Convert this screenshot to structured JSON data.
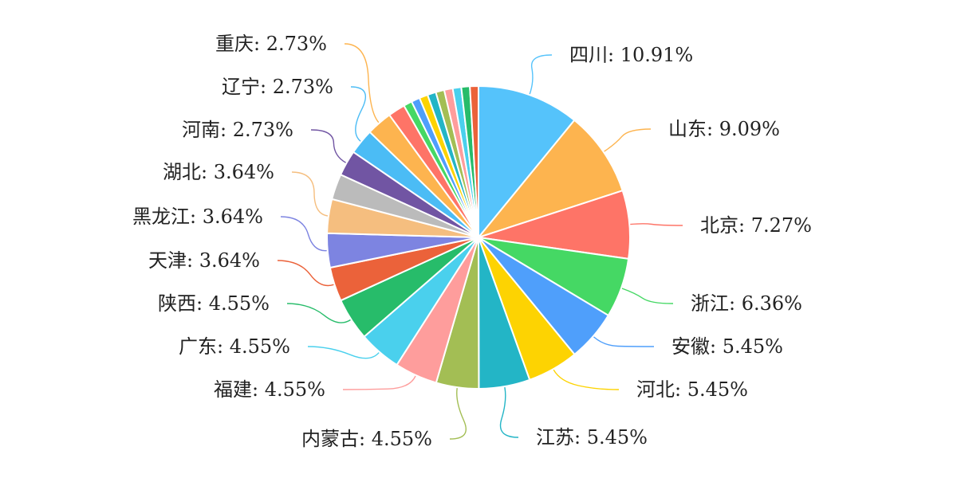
{
  "chart_data": {
    "type": "pie",
    "slices": [
      {
        "name": "四川",
        "value": 10.91,
        "label": "四川: 10.91%",
        "color": "#55c3fb"
      },
      {
        "name": "山东",
        "value": 9.09,
        "label": "山东: 9.09%",
        "color": "#fdb44f"
      },
      {
        "name": "北京",
        "value": 7.27,
        "label": "北京: 7.27%",
        "color": "#fe7467"
      },
      {
        "name": "浙江",
        "value": 6.36,
        "label": "浙江: 6.36%",
        "color": "#45d864"
      },
      {
        "name": "安徽",
        "value": 5.45,
        "label": "安徽: 5.45%",
        "color": "#4f9ffb"
      },
      {
        "name": "河北",
        "value": 5.45,
        "label": "河北: 5.45%",
        "color": "#fdd302"
      },
      {
        "name": "江苏",
        "value": 5.45,
        "label": "江苏: 5.45%",
        "color": "#23b5c6"
      },
      {
        "name": "内蒙古",
        "value": 4.55,
        "label": "内蒙古: 4.55%",
        "color": "#a3be54"
      },
      {
        "name": "福建",
        "value": 4.55,
        "label": "福建: 4.55%",
        "color": "#fe9d9c"
      },
      {
        "name": "广东",
        "value": 4.55,
        "label": "广东: 4.55%",
        "color": "#4ad0ed"
      },
      {
        "name": "陕西",
        "value": 4.55,
        "label": "陕西: 4.55%",
        "color": "#27bc6a"
      },
      {
        "name": "天津",
        "value": 3.64,
        "label": "天津: 3.64%",
        "color": "#eb623a"
      },
      {
        "name": "黑龙江",
        "value": 3.64,
        "label": "黑龙江: 3.64%",
        "color": "#7d84e1"
      },
      {
        "name": "湖北",
        "value": 3.64,
        "label": "湖北: 3.64%",
        "color": "#f5be7f"
      },
      {
        "name": "",
        "value": 2.73,
        "label": "",
        "color": "#bbbbbb"
      },
      {
        "name": "河南",
        "value": 2.73,
        "label": "河南: 2.73%",
        "color": "#7155a3"
      },
      {
        "name": "辽宁",
        "value": 2.73,
        "label": "辽宁: 2.73%",
        "color": "#4bbcf5"
      },
      {
        "name": "重庆",
        "value": 2.73,
        "label": "重庆: 2.73%",
        "color": "#fdb44f"
      },
      {
        "name": "",
        "value": 1.82,
        "label": "",
        "color": "#fe7467"
      },
      {
        "name": "",
        "value": 0.91,
        "label": "",
        "color": "#45d864"
      },
      {
        "name": "",
        "value": 0.91,
        "label": "",
        "color": "#4f9ffb"
      },
      {
        "name": "",
        "value": 0.91,
        "label": "",
        "color": "#fdd302"
      },
      {
        "name": "",
        "value": 0.91,
        "label": "",
        "color": "#23b5c6"
      },
      {
        "name": "",
        "value": 0.91,
        "label": "",
        "color": "#a3be54"
      },
      {
        "name": "",
        "value": 0.91,
        "label": "",
        "color": "#fe9d9c"
      },
      {
        "name": "",
        "value": 0.91,
        "label": "",
        "color": "#4ad0ed"
      },
      {
        "name": "",
        "value": 0.91,
        "label": "",
        "color": "#27bc6a"
      },
      {
        "name": "",
        "value": 0.91,
        "label": "",
        "color": "#eb623a"
      }
    ]
  }
}
